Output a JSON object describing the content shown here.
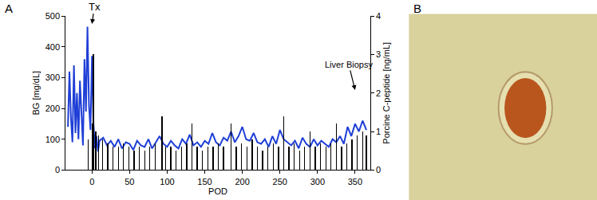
{
  "chart_data": {
    "type": "line",
    "panel_label": "A",
    "x_label": "POD",
    "y_label": "BG [mg/dL]",
    "y2_label": "Porcine C-peptide [ng/mL]",
    "xlim": [
      -35,
      370
    ],
    "xticks": [
      0,
      50,
      100,
      150,
      200,
      250,
      300,
      350
    ],
    "ylim": [
      0,
      500
    ],
    "yticks": [
      0,
      100,
      200,
      300,
      400,
      500
    ],
    "y2lim": [
      0,
      4
    ],
    "y2ticks": [
      0,
      1,
      2,
      3,
      4
    ],
    "grid": false,
    "annotations": [
      {
        "text": "Tx",
        "x": 0
      },
      {
        "text": "Liver Biopsy",
        "x": 350
      }
    ],
    "series": [
      {
        "type": "bar",
        "axis": "y2",
        "color": "#000000",
        "x": [
          -5,
          0,
          2,
          5,
          9,
          14,
          21,
          28,
          35,
          42,
          49,
          56,
          63,
          70,
          77,
          84,
          93,
          98,
          105,
          112,
          119,
          126,
          133,
          140,
          147,
          154,
          161,
          168,
          175,
          185,
          192,
          199,
          206,
          213,
          220,
          227,
          234,
          241,
          248,
          255,
          262,
          269,
          276,
          283,
          290,
          297,
          304,
          311,
          318,
          325,
          332,
          339,
          346,
          353,
          360,
          365
        ],
        "values": [
          0.8,
          1.2,
          3.0,
          1.0,
          0.9,
          0.8,
          0.7,
          0.6,
          0.6,
          0.7,
          0.6,
          0.5,
          0.6,
          0.5,
          0.6,
          0.7,
          1.4,
          0.6,
          0.6,
          0.5,
          0.6,
          0.7,
          1.2,
          0.6,
          0.5,
          0.6,
          0.6,
          0.7,
          0.6,
          1.2,
          0.6,
          0.7,
          0.6,
          0.8,
          0.6,
          0.5,
          0.6,
          0.7,
          0.6,
          1.4,
          0.6,
          0.7,
          0.5,
          0.6,
          1.0,
          0.6,
          0.7,
          0.6,
          0.7,
          1.2,
          0.6,
          0.7,
          0.8,
          0.9,
          1.0,
          0.9
        ]
      },
      {
        "type": "line",
        "color": "#1f3fd6",
        "x": [
          -32,
          -30,
          -28,
          -26,
          -24,
          -22,
          -20,
          -18,
          -16,
          -14,
          -12,
          -10,
          -8,
          -6,
          -4,
          -2,
          0,
          2,
          4,
          6,
          8,
          10,
          15,
          20,
          25,
          30,
          35,
          40,
          45,
          50,
          55,
          60,
          65,
          70,
          75,
          80,
          85,
          90,
          95,
          100,
          105,
          110,
          115,
          120,
          125,
          130,
          135,
          140,
          145,
          150,
          155,
          160,
          165,
          170,
          175,
          180,
          185,
          190,
          195,
          200,
          205,
          210,
          215,
          220,
          225,
          230,
          235,
          240,
          245,
          250,
          255,
          260,
          265,
          270,
          275,
          280,
          285,
          290,
          295,
          300,
          305,
          310,
          315,
          320,
          325,
          330,
          335,
          340,
          345,
          350,
          355,
          360,
          365
        ],
        "values": [
          140,
          320,
          170,
          90,
          340,
          120,
          250,
          100,
          290,
          160,
          80,
          360,
          190,
          465,
          210,
          130,
          370,
          150,
          70,
          110,
          60,
          95,
          105,
          80,
          95,
          75,
          100,
          70,
          90,
          85,
          65,
          95,
          80,
          75,
          100,
          70,
          90,
          110,
          85,
          75,
          95,
          80,
          70,
          100,
          85,
          115,
          80,
          90,
          75,
          95,
          85,
          120,
          90,
          80,
          105,
          95,
          125,
          90,
          110,
          140,
          100,
          95,
          120,
          90,
          85,
          100,
          75,
          110,
          85,
          130,
          100,
          90,
          80,
          95,
          70,
          105,
          85,
          75,
          100,
          80,
          95,
          85,
          75,
          100,
          90,
          110,
          85,
          140,
          110,
          150,
          125,
          160,
          130
        ]
      }
    ]
  },
  "image_panel": {
    "panel_label": "B"
  }
}
